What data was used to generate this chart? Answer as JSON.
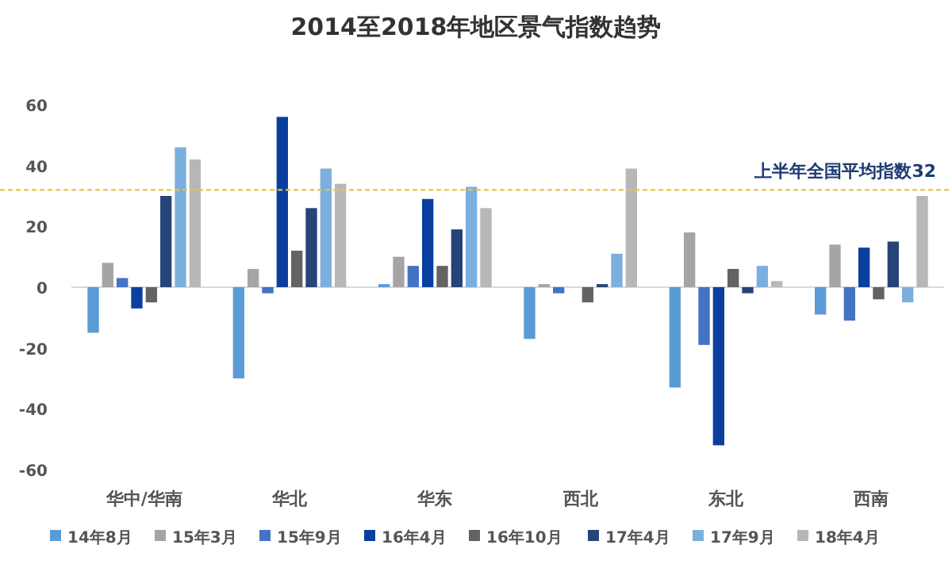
{
  "chart_data": {
    "type": "bar",
    "title": "2014至2018年地区景气指数趋势",
    "categories": [
      "华中/华南",
      "华北",
      "华东",
      "西北",
      "东北",
      "西南"
    ],
    "series": [
      {
        "name": "14年8月",
        "color": "#5b9bd5",
        "values": [
          -15,
          -30,
          1,
          -17,
          -33,
          -9
        ]
      },
      {
        "name": "15年3月",
        "color": "#a5a5a5",
        "values": [
          8,
          6,
          10,
          1,
          18,
          14
        ]
      },
      {
        "name": "15年9月",
        "color": "#4472c4",
        "values": [
          3,
          -2,
          7,
          -2,
          -19,
          -11
        ]
      },
      {
        "name": "16年4月",
        "color": "#0a3fa0",
        "values": [
          -7,
          56,
          29,
          0,
          -52,
          13
        ]
      },
      {
        "name": "16年10月",
        "color": "#636363",
        "values": [
          -5,
          12,
          7,
          -5,
          6,
          -4
        ]
      },
      {
        "name": "17年4月",
        "color": "#264478",
        "values": [
          30,
          26,
          19,
          1,
          -2,
          15
        ]
      },
      {
        "name": "17年9月",
        "color": "#7cafdd",
        "values": [
          46,
          39,
          33,
          11,
          7,
          -5
        ]
      },
      {
        "name": "18年4月",
        "color": "#b7b7b7",
        "values": [
          42,
          34,
          26,
          39,
          2,
          30
        ]
      }
    ],
    "ylim": [
      -60,
      60
    ],
    "yticks": [
      -60,
      -40,
      -20,
      0,
      20,
      40,
      60
    ],
    "legend": "bottom",
    "ref_lines": [
      {
        "axis": "y",
        "value": 32,
        "label": "上半年全国平均指数32",
        "color": "#e8c34a",
        "line_style": "dashed"
      }
    ]
  }
}
